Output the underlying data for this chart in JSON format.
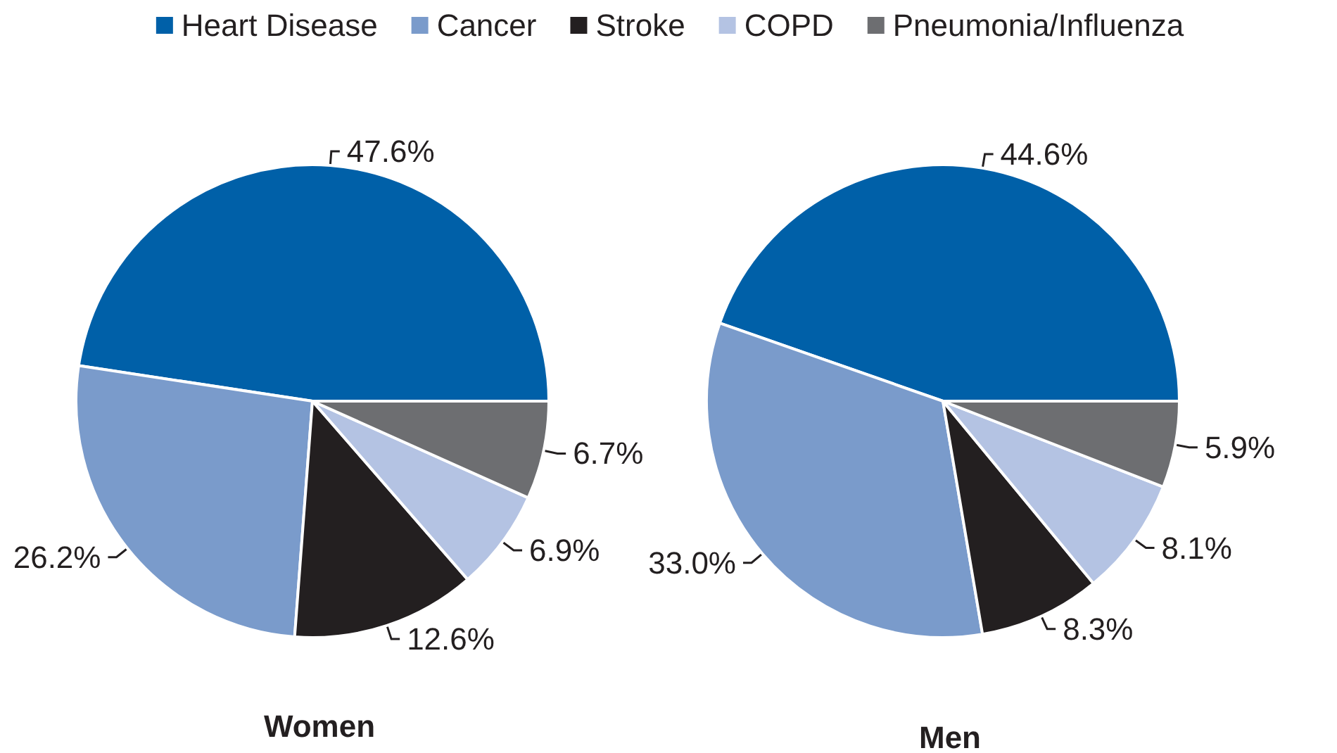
{
  "chart_data": {
    "type": "pie",
    "categories": [
      "Heart Disease",
      "Cancer",
      "Stroke",
      "COPD",
      "Pneumonia/Influenza"
    ],
    "colors": [
      "#0060a8",
      "#7a9bcb",
      "#231f20",
      "#b4c3e3",
      "#6d6e71"
    ],
    "legend": "top",
    "series": [
      {
        "name": "Women",
        "values": [
          47.6,
          26.2,
          12.6,
          6.9,
          6.7
        ],
        "value_labels": [
          "47.6%",
          "26.2%",
          "12.6%",
          "6.9%",
          "6.7%"
        ]
      },
      {
        "name": "Men",
        "values": [
          44.6,
          33.0,
          8.3,
          8.1,
          5.9
        ],
        "value_labels": [
          "44.6%",
          "33.0%",
          "8.3%",
          "8.1%",
          "5.9%"
        ]
      }
    ]
  }
}
